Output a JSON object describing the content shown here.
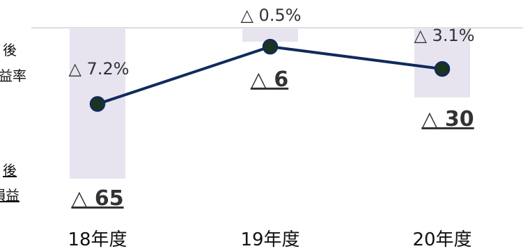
{
  "chart_data": {
    "type": "bar",
    "categories": [
      "18年度",
      "19年度",
      "20年度"
    ],
    "series": [
      {
        "kind": "bar",
        "values": [
          -65,
          -6,
          -30
        ],
        "labels": [
          "△ 65",
          "△ 6",
          "△ 30"
        ]
      },
      {
        "kind": "line",
        "values": [
          -7.2,
          -0.5,
          -3.1
        ],
        "labels": [
          "△ 7.2%",
          "△ 0.5%",
          "△ 3.1%"
        ]
      }
    ],
    "colors": {
      "bar": "#e7e4f0",
      "line": "#102a5c",
      "marker": "#1b3320",
      "axis": "#d0d0d0",
      "text": "#222222"
    }
  },
  "legend_fragments": {
    "ratio_line1": "後",
    "ratio_line2": "益率",
    "amount_line1": "後",
    "amount_line2": "損益"
  }
}
